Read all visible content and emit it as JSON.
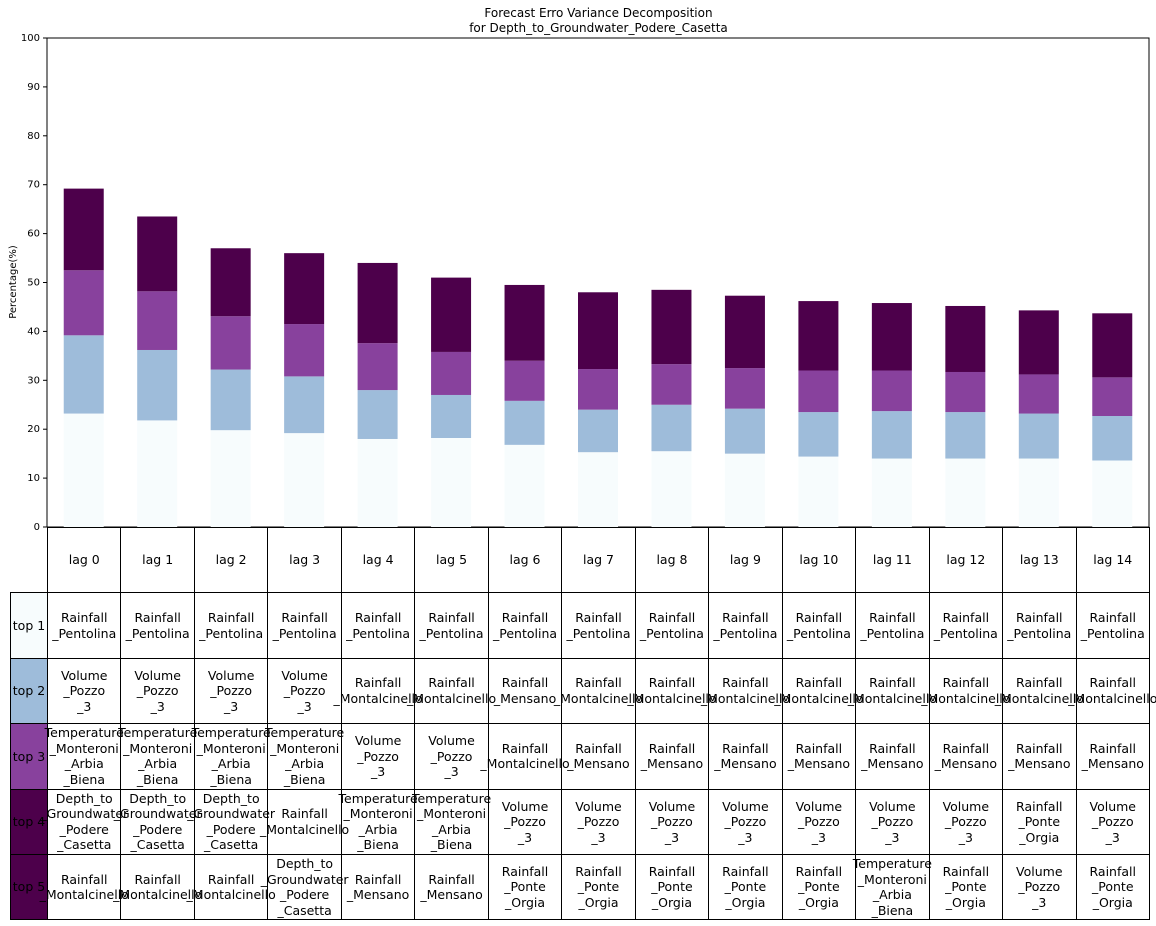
{
  "chart_data": {
    "type": "stacked_bar",
    "title": "Forecast Erro Variance Decomposition\nfor Depth_to_Groundwater_Podere_Casetta",
    "y_label": "Percentage(%)",
    "categories": [
      "lag 0",
      "lag 1",
      "lag 2",
      "lag 3",
      "lag 4",
      "lag 5",
      "lag 6",
      "lag 7",
      "lag 8",
      "lag 9",
      "lag 10",
      "lag 11",
      "lag 12",
      "lag 13",
      "lag 14"
    ],
    "series": [
      {
        "color": "#f7fcfd",
        "values": [
          23.2,
          21.8,
          19.8,
          19.2,
          18.0,
          18.2,
          16.8,
          15.3,
          15.5,
          15.0,
          14.4,
          14.0,
          14.0,
          14.0,
          13.6
        ]
      },
      {
        "color": "#9ebcda",
        "values": [
          16.0,
          14.4,
          12.4,
          11.6,
          10.0,
          8.8,
          9.0,
          8.7,
          9.5,
          9.2,
          9.1,
          9.7,
          9.5,
          9.2,
          9.1
        ]
      },
      {
        "color": "#88419d",
        "values": [
          13.3,
          12.0,
          10.9,
          10.7,
          9.6,
          8.8,
          8.2,
          8.3,
          8.3,
          8.3,
          8.5,
          8.3,
          8.2,
          8.0,
          7.9
        ]
      },
      {
        "color": "#4d004b",
        "values": [
          16.7,
          15.3,
          13.9,
          14.5,
          16.4,
          15.2,
          15.5,
          15.7,
          15.2,
          14.8,
          14.2,
          13.8,
          13.5,
          13.1,
          13.1
        ]
      }
    ],
    "ylim": [
      0,
      100
    ],
    "yticks": [
      0,
      10,
      20,
      30,
      40,
      50,
      60,
      70,
      80,
      90,
      100
    ],
    "table": {
      "rows": [
        {
          "label": "top 1",
          "color": "#f7fcfd",
          "cells": [
            "Rainfall\n_Pentolina",
            "Rainfall\n_Pentolina",
            "Rainfall\n_Pentolina",
            "Rainfall\n_Pentolina",
            "Rainfall\n_Pentolina",
            "Rainfall\n_Pentolina",
            "Rainfall\n_Pentolina",
            "Rainfall\n_Pentolina",
            "Rainfall\n_Pentolina",
            "Rainfall\n_Pentolina",
            "Rainfall\n_Pentolina",
            "Rainfall\n_Pentolina",
            "Rainfall\n_Pentolina",
            "Rainfall\n_Pentolina",
            "Rainfall\n_Pentolina"
          ]
        },
        {
          "label": "top 2",
          "color": "#9ebcda",
          "cells": [
            "Volume\n_Pozzo\n_3",
            "Volume\n_Pozzo\n_3",
            "Volume\n_Pozzo\n_3",
            "Volume\n_Pozzo\n_3",
            "Rainfall\n_Montalcinello",
            "Rainfall\n_Montalcinello",
            "Rainfall\n_Mensano",
            "Rainfall\n_Montalcinello",
            "Rainfall\n_Montalcinello",
            "Rainfall\n_Montalcinello",
            "Rainfall\n_Montalcinello",
            "Rainfall\n_Montalcinello",
            "Rainfall\n_Montalcinello",
            "Rainfall\n_Montalcinello",
            "Rainfall\n_Montalcinello"
          ]
        },
        {
          "label": "top 3",
          "color": "#88419d",
          "cells": [
            "Temperature\n_Monteroni\n_Arbia\n_Biena",
            "Temperature\n_Monteroni\n_Arbia\n_Biena",
            "Temperature\n_Monteroni\n_Arbia\n_Biena",
            "Temperature\n_Monteroni\n_Arbia\n_Biena",
            "Volume\n_Pozzo\n_3",
            "Volume\n_Pozzo\n_3",
            "Rainfall\n_Montalcinello",
            "Rainfall\n_Mensano",
            "Rainfall\n_Mensano",
            "Rainfall\n_Mensano",
            "Rainfall\n_Mensano",
            "Rainfall\n_Mensano",
            "Rainfall\n_Mensano",
            "Rainfall\n_Mensano",
            "Rainfall\n_Mensano"
          ]
        },
        {
          "label": "top 4",
          "color": "#4d004b",
          "cells": [
            "Depth_to\n_Groundwater\n_Podere\n_Casetta",
            "Depth_to\n_Groundwater\n_Podere\n_Casetta",
            "Depth_to\n_Groundwater\n_Podere\n_Casetta",
            "Rainfall\n_Montalcinello",
            "Temperature\n_Monteroni\n_Arbia\n_Biena",
            "Temperature\n_Monteroni\n_Arbia\n_Biena",
            "Volume\n_Pozzo\n_3",
            "Volume\n_Pozzo\n_3",
            "Volume\n_Pozzo\n_3",
            "Volume\n_Pozzo\n_3",
            "Volume\n_Pozzo\n_3",
            "Volume\n_Pozzo\n_3",
            "Volume\n_Pozzo\n_3",
            "Rainfall\n_Ponte\n_Orgia",
            "Volume\n_Pozzo\n_3"
          ]
        },
        {
          "label": "top 5",
          "color": "#4d004b",
          "cells": [
            "Rainfall\n_Montalcinello",
            "Rainfall\n_Montalcinello",
            "Rainfall\n_Montalcinello",
            "Depth_to\n_Groundwater\n_Podere\n_Casetta",
            "Rainfall\n_Mensano",
            "Rainfall\n_Mensano",
            "Rainfall\n_Ponte\n_Orgia",
            "Rainfall\n_Ponte\n_Orgia",
            "Rainfall\n_Ponte\n_Orgia",
            "Rainfall\n_Ponte\n_Orgia",
            "Rainfall\n_Ponte\n_Orgia",
            "Temperature\n_Monteroni\n_Arbia\n_Biena",
            "Rainfall\n_Ponte\n_Orgia",
            "Volume\n_Pozzo\n_3",
            "Rainfall\n_Ponte\n_Orgia"
          ]
        }
      ]
    }
  }
}
